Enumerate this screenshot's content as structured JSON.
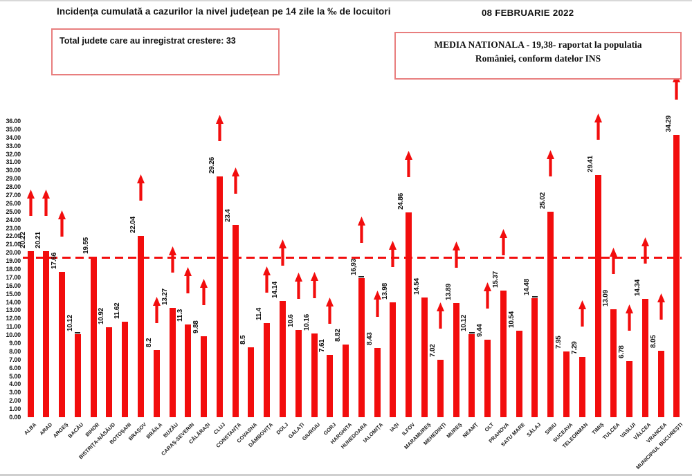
{
  "header": {
    "title": "Incidența cumulată a cazurilor la nivel județean pe 14 zile la ‰ de locuitori",
    "date": "08 FEBRUARIE 2022",
    "growth_box_text": "Total judete care au inregistrat crestere: 33",
    "average_line1": "MEDIA NATIONALA - 19,38-  raportat la populatia",
    "average_line2": "României, conform datelor INS"
  },
  "colors": {
    "bar": "#f20d0d",
    "arrow": "#f20d0d",
    "average_line": "#f20d0d",
    "box_border": "#e87e7e",
    "text": "#111111"
  },
  "chart_data": {
    "type": "bar",
    "title": "Incidența cumulată a cazurilor la nivel județean pe 14 zile la ‰ de locuitori",
    "xlabel": "",
    "ylabel": "",
    "ylim": [
      0,
      36
    ],
    "ytick_step": 1,
    "ytick_format": "0.00",
    "grid": false,
    "legend": false,
    "national_average": 19.38,
    "average_line_style": "dashed-red-horizontal",
    "categories": [
      "ALBA",
      "ARAD",
      "ARGEȘ",
      "BACĂU",
      "BIHOR",
      "BISTRIȚA-NĂSĂUD",
      "BOTOȘANI",
      "BRAȘOV",
      "BRĂILA",
      "BUZĂU",
      "CARAȘ-SEVERIN",
      "CĂLĂRAȘI",
      "CLUJ",
      "CONSTANȚA",
      "COVASNA",
      "DÂMBOVIȚA",
      "DOLJ",
      "GALAȚI",
      "GIURGIU",
      "GORJ",
      "HARGHITA",
      "HUNEDOARA",
      "IALOMIȚA",
      "IAȘI",
      "ILFOV",
      "MARAMUREȘ",
      "MEHEDINȚI",
      "MUREȘ",
      "NEAMȚ",
      "OLT",
      "PRAHOVA",
      "SATU MARE",
      "SĂLAJ",
      "SIBIU",
      "SUCEAVA",
      "TELEORMAN",
      "TIMIȘ",
      "TULCEA",
      "VASLUI",
      "VÂLCEA",
      "VRANCEA",
      "MUNICIPIUL BUCUREȘTI"
    ],
    "values": [
      20.22,
      20.21,
      17.66,
      10.12,
      19.55,
      10.92,
      11.62,
      22.04,
      8.2,
      13.27,
      11.3,
      9.88,
      29.26,
      23.4,
      8.5,
      11.4,
      14.14,
      10.6,
      10.16,
      7.61,
      8.82,
      16.93,
      8.43,
      13.98,
      24.86,
      14.54,
      7.02,
      13.89,
      10.12,
      9.44,
      15.37,
      10.54,
      14.48,
      25.02,
      7.95,
      7.29,
      29.41,
      13.09,
      6.78,
      14.34,
      8.05,
      34.29
    ],
    "value_labels": [
      "20.22",
      "20.21",
      "17.66",
      "10.12",
      "19.55",
      "10.92",
      "11.62",
      "22.04",
      "8.2",
      "13.27",
      "11.3",
      "9.88",
      "29.26",
      "23.4",
      "8.5",
      "11.4",
      "14.14",
      "10.6",
      "10.16",
      "7.61",
      "8.82",
      "16,93",
      "8.43",
      "13.98",
      "24.86",
      "14.54",
      "7.02",
      "13.89",
      "10.12",
      "9.44",
      "15.37",
      "10.54",
      "14.48",
      "25.02",
      "7.95",
      "7.29",
      "29.41",
      "13.09",
      "6.78",
      "14.34",
      "8.05",
      "34.29"
    ],
    "increase_arrow": [
      true,
      true,
      true,
      false,
      false,
      false,
      false,
      true,
      true,
      true,
      true,
      true,
      true,
      true,
      false,
      true,
      true,
      true,
      true,
      true,
      false,
      true,
      true,
      true,
      true,
      false,
      true,
      true,
      false,
      true,
      true,
      false,
      false,
      true,
      false,
      true,
      true,
      true,
      true,
      true,
      true,
      true
    ],
    "label_leader_dash": [
      false,
      false,
      false,
      true,
      false,
      false,
      false,
      false,
      false,
      false,
      false,
      false,
      false,
      false,
      false,
      false,
      false,
      false,
      false,
      false,
      false,
      true,
      false,
      false,
      false,
      false,
      false,
      false,
      true,
      false,
      false,
      false,
      true,
      false,
      false,
      false,
      false,
      false,
      false,
      false,
      false,
      false
    ]
  }
}
